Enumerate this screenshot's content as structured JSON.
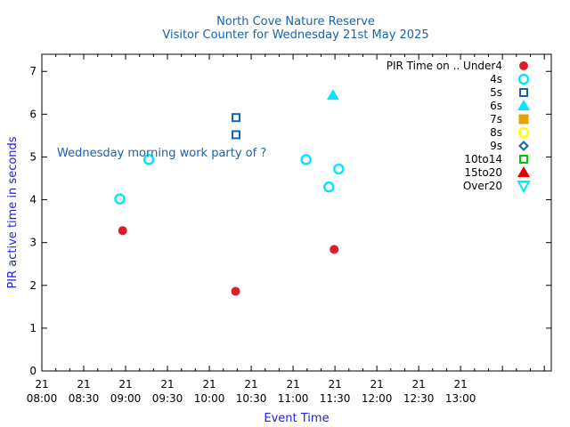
{
  "chart_data": {
    "type": "scatter",
    "title": "North Cove Nature Reserve",
    "subtitle": "Visitor Counter for Wednesday 21st May 2025",
    "xlabel": "Event Time",
    "ylabel": "PIR active time in seconds",
    "annotation": "Wednesday morning work party of ?",
    "x_unit": "minutes since 00:00",
    "xlim": [
      480,
      845
    ],
    "ylim": [
      0,
      7.4
    ],
    "xticks": [
      {
        "value": 480,
        "day": "21",
        "time": "08:00"
      },
      {
        "value": 510,
        "day": "21",
        "time": "08:30"
      },
      {
        "value": 540,
        "day": "21",
        "time": "09:00"
      },
      {
        "value": 570,
        "day": "21",
        "time": "09:30"
      },
      {
        "value": 600,
        "day": "21",
        "time": "10:00"
      },
      {
        "value": 630,
        "day": "21",
        "time": "10:30"
      },
      {
        "value": 660,
        "day": "21",
        "time": "11:00"
      },
      {
        "value": 690,
        "day": "21",
        "time": "11:30"
      },
      {
        "value": 720,
        "day": "21",
        "time": "12:00"
      },
      {
        "value": 750,
        "day": "21",
        "time": "12:30"
      },
      {
        "value": 780,
        "day": "21",
        "time": "13:00"
      }
    ],
    "yticks": [
      0,
      1,
      2,
      3,
      4,
      5,
      6,
      7
    ],
    "legend_title": "PIR Time on ..",
    "legend_position": "top-right",
    "series": [
      {
        "name": "Under4",
        "marker": "circle-filled",
        "color": "#dc1e28",
        "points": [
          {
            "x": 537.9,
            "y": 3.28
          },
          {
            "x": 618.8,
            "y": 1.86
          },
          {
            "x": 689.4,
            "y": 2.84
          }
        ]
      },
      {
        "name": "4s",
        "marker": "circle-open",
        "color": "#00e6ff",
        "points": [
          {
            "x": 535.8,
            "y": 4.02
          },
          {
            "x": 556.6,
            "y": 4.94
          },
          {
            "x": 669.3,
            "y": 4.94
          },
          {
            "x": 685.6,
            "y": 4.3
          },
          {
            "x": 692.7,
            "y": 4.72
          }
        ]
      },
      {
        "name": "5s",
        "marker": "square-open",
        "color": "#1464b4",
        "points": [
          {
            "x": 619.1,
            "y": 5.92
          },
          {
            "x": 619.1,
            "y": 5.52
          }
        ]
      },
      {
        "name": "6s",
        "marker": "triangle-up-filled",
        "color": "#00e6ff",
        "points": [
          {
            "x": 688.6,
            "y": 6.44
          }
        ]
      },
      {
        "name": "7s",
        "marker": "square-filled",
        "color": "#e6a000",
        "points": []
      },
      {
        "name": "8s",
        "marker": "circle-open",
        "color": "#ffff00",
        "points": []
      },
      {
        "name": "9s",
        "marker": "diamond-open",
        "color": "#1464b4",
        "points": []
      },
      {
        "name": "10to14",
        "marker": "square-open",
        "color": "#00c800",
        "points": []
      },
      {
        "name": "15to20",
        "marker": "triangle-up-filled",
        "color": "#e60000",
        "points": []
      },
      {
        "name": "Over20",
        "marker": "triangle-down-open",
        "color": "#00e6ff",
        "points": []
      }
    ]
  },
  "colors": {
    "title": "#1464b4",
    "axis_label": "#1e1ee6",
    "annotation": "#1464b4",
    "text": "#000000"
  }
}
